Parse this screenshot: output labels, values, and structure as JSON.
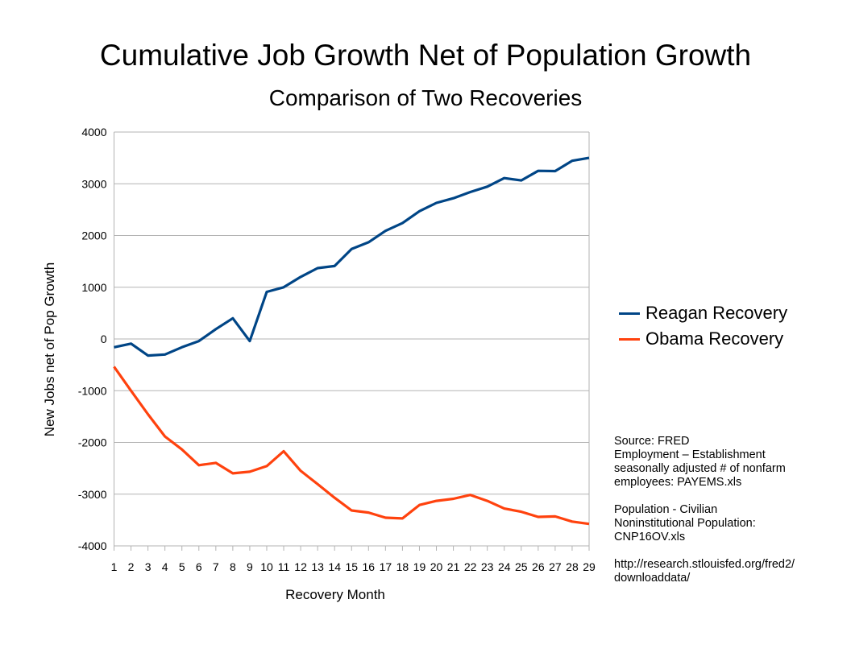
{
  "chart_data": {
    "type": "line",
    "title": "Cumulative Job Growth Net of Population Growth",
    "subtitle": "Comparison of Two Recoveries",
    "xlabel": "Recovery Month",
    "ylabel": "New Jobs net of Pop Growth",
    "x": [
      1,
      2,
      3,
      4,
      5,
      6,
      7,
      8,
      9,
      10,
      11,
      12,
      13,
      14,
      15,
      16,
      17,
      18,
      19,
      20,
      21,
      22,
      23,
      24,
      25,
      26,
      27,
      28,
      29
    ],
    "ylim": [
      -4000,
      4000
    ],
    "yticks": [
      4000,
      3000,
      2000,
      1000,
      0,
      -1000,
      -2000,
      -3000,
      -4000
    ],
    "grid": true,
    "legend_position": "right",
    "series": [
      {
        "name": "Reagan Recovery",
        "color": "#004586",
        "values": [
          -160,
          -90,
          -320,
          -300,
          -160,
          -40,
          190,
          400,
          -40,
          910,
          1000,
          1200,
          1370,
          1410,
          1740,
          1870,
          2090,
          2240,
          2470,
          2630,
          2720,
          2840,
          2945,
          3110,
          3065,
          3250,
          3245,
          3445,
          3500
        ]
      },
      {
        "name": "Obama Recovery",
        "color": "#ff420e",
        "values": [
          -535,
          -1000,
          -1455,
          -1885,
          -2135,
          -2440,
          -2395,
          -2597,
          -2566,
          -2457,
          -2170,
          -2550,
          -2805,
          -3070,
          -3315,
          -3355,
          -3455,
          -3470,
          -3210,
          -3130,
          -3090,
          -3015,
          -3130,
          -3278,
          -3340,
          -3440,
          -3430,
          -3530,
          -3575
        ]
      }
    ]
  },
  "source_note": [
    "Source: FRED",
    "Employment – Establishment",
    "seasonally adjusted # of nonfarm",
    "employees: PAYEMS.xls",
    "",
    "Population - Civilian",
    "Noninstitutional Population:",
    "CNP16OV.xls",
    "",
    "http://research.stlouisfed.org/fred2/",
    "downloaddata/"
  ]
}
